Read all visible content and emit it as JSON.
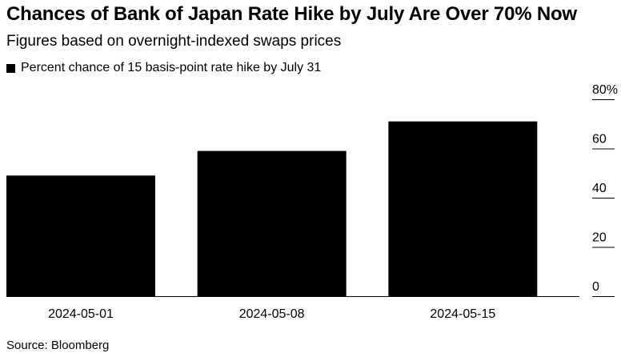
{
  "title": "Chances of Bank of Japan Rate Hike by July Are Over 70% Now",
  "subtitle": "Figures based on overnight-indexed swaps prices",
  "source": "Source: Bloomberg",
  "colors": {
    "bar": "#000000",
    "axis": "#000000",
    "text": "#000000"
  },
  "chart_data": {
    "type": "bar",
    "categories": [
      "2024-05-01",
      "2024-05-08",
      "2024-05-15"
    ],
    "series": [
      {
        "name": "Percent chance of 15 basis-point rate hike by July 31",
        "values": [
          49,
          59,
          71
        ]
      }
    ],
    "ylim": [
      0,
      80
    ],
    "yticks": [
      0,
      20,
      40,
      60,
      80
    ],
    "ytick_labels": [
      "0",
      "20",
      "40",
      "60",
      "80%"
    ],
    "y_axis_side": "right",
    "grid": false,
    "legend_position": "top-left"
  }
}
